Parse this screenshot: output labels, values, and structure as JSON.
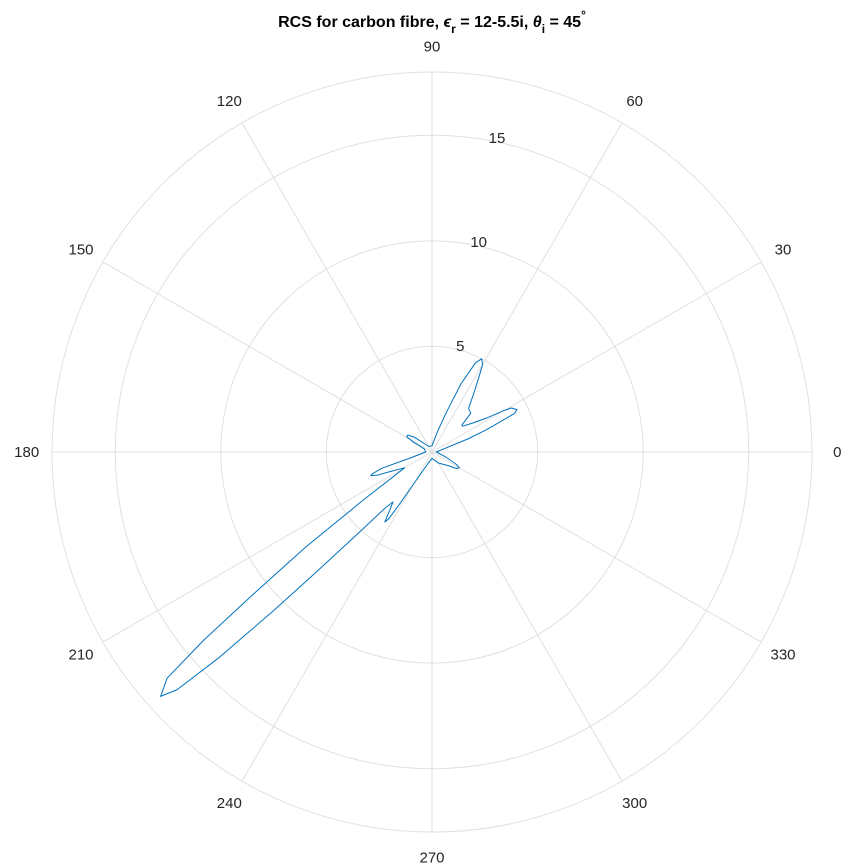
{
  "chart_data": {
    "type": "polar-line",
    "title": {
      "prefix": "RCS for carbon fibre, ",
      "eps_sym": "ϵ",
      "eps_sub": "r",
      "mid": " = 12-5.5i, ",
      "theta_sym": "θ",
      "theta_sub": "i",
      "suffix": " = 45",
      "degree": "°"
    },
    "theta_ticks": [
      0,
      30,
      60,
      90,
      120,
      150,
      180,
      210,
      240,
      270,
      300,
      330
    ],
    "theta_tick_labels": [
      "0",
      "30",
      "60",
      "90",
      "120",
      "150",
      "180",
      "210",
      "240",
      "270",
      "300",
      "330"
    ],
    "r_ticks": [
      5,
      10,
      15
    ],
    "r_tick_labels": [
      "5",
      "10",
      "15"
    ],
    "r_range": [
      0,
      18
    ],
    "theta_unit": "degrees",
    "grid": true,
    "line_color": "#0072BD",
    "series": [
      {
        "points": [
          [
            0,
            0.2
          ],
          [
            15,
            0.6
          ],
          [
            20,
            1.8
          ],
          [
            22,
            2.7
          ],
          [
            23,
            3.1
          ],
          [
            24,
            3.6
          ],
          [
            25,
            4.3
          ],
          [
            26.5,
            4.5
          ],
          [
            29,
            4.3
          ],
          [
            30,
            3.9
          ],
          [
            32,
            3.0
          ],
          [
            36,
            2.3
          ],
          [
            40,
            1.9
          ],
          [
            42,
            1.9
          ],
          [
            44,
            2.3
          ],
          [
            45,
            2.6
          ],
          [
            50,
            2.7
          ],
          [
            55,
            3.5
          ],
          [
            58,
            4.2
          ],
          [
            60,
            4.8
          ],
          [
            62,
            5.0
          ],
          [
            64,
            4.7
          ],
          [
            67,
            3.5
          ],
          [
            70,
            2.0
          ],
          [
            75,
            1.0
          ],
          [
            90,
            0.3
          ],
          [
            120,
            0.3
          ],
          [
            140,
            1.1
          ],
          [
            145,
            1.4
          ],
          [
            149,
            1.4
          ],
          [
            152,
            1.0
          ],
          [
            158,
            0.4
          ],
          [
            180,
            0.3
          ],
          [
            195,
            1.0
          ],
          [
            198,
            2.5
          ],
          [
            200,
            3.0
          ],
          [
            201,
            3.1
          ],
          [
            203,
            2.8
          ],
          [
            205,
            2.2
          ],
          [
            210,
            1.5
          ],
          [
            215,
            4.0
          ],
          [
            217,
            7.5
          ],
          [
            218.5,
            10.8
          ],
          [
            219.5,
            14.0
          ],
          [
            220.5,
            16.5
          ],
          [
            222,
            17.3
          ],
          [
            223,
            16.5
          ],
          [
            224,
            14.0
          ],
          [
            225,
            10.7
          ],
          [
            226,
            8.0
          ],
          [
            228,
            5.0
          ],
          [
            230,
            3.5
          ],
          [
            232,
            3.0
          ],
          [
            234,
            3.4
          ],
          [
            236,
            4.0
          ],
          [
            237,
            3.8
          ],
          [
            238,
            3.0
          ],
          [
            240,
            1.8
          ],
          [
            250,
            0.6
          ],
          [
            270,
            0.3
          ],
          [
            300,
            0.6
          ],
          [
            320,
            1.0
          ],
          [
            326,
            1.4
          ],
          [
            330,
            1.5
          ],
          [
            333,
            1.3
          ],
          [
            340,
            0.7
          ],
          [
            360,
            0.2
          ]
        ]
      }
    ]
  }
}
